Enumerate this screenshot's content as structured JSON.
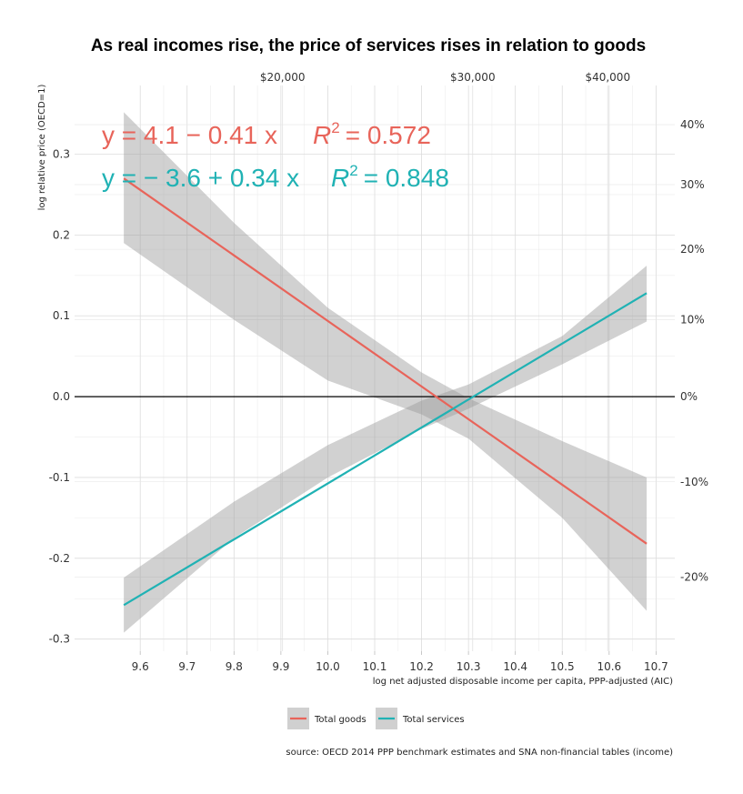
{
  "chart_data": {
    "type": "line",
    "title": "As real incomes rise, the price of services rises in relation to goods",
    "xlabel": "log net adjusted disposable income per capita, PPP-adjusted (AIC)",
    "ylabel": "log relative price (OECD=1)",
    "xlim": [
      9.46,
      10.74
    ],
    "ylim": [
      -0.315,
      0.385
    ],
    "x_ticks": [
      "9.6",
      "9.7",
      "9.8",
      "9.9",
      "10.0",
      "10.1",
      "10.2",
      "10.3",
      "10.4",
      "10.5",
      "10.6",
      "10.7"
    ],
    "x_tick_values": [
      9.6,
      9.7,
      9.8,
      9.9,
      10.0,
      10.1,
      10.2,
      10.3,
      10.4,
      10.5,
      10.6,
      10.7
    ],
    "y_ticks": [
      "0.3",
      "0.2",
      "0.1",
      "0.0",
      "-0.1",
      "-0.2",
      "-0.3"
    ],
    "y_tick_values": [
      0.3,
      0.2,
      0.1,
      0.0,
      -0.1,
      -0.2,
      -0.3
    ],
    "secondary_x_ticks": [
      "$20,000",
      "$30,000",
      "$40,000"
    ],
    "secondary_x_tick_values": [
      9.9035,
      10.309,
      10.597
    ],
    "secondary_y_ticks": [
      "40%",
      "30%",
      "20%",
      "10%",
      "0%",
      "-10%",
      "-20%"
    ],
    "secondary_y_tick_values": [
      0.3365,
      0.2624,
      0.1823,
      0.0953,
      0.0,
      -0.1054,
      -0.2231
    ],
    "x_range": [
      9.565,
      10.68
    ],
    "series": [
      {
        "name": "Total goods",
        "color": "#E8645A",
        "line": [
          [
            9.565,
            0.27
          ],
          [
            10.68,
            -0.182
          ]
        ],
        "band_upper": [
          [
            9.565,
            0.352
          ],
          [
            9.8,
            0.215
          ],
          [
            10.0,
            0.11
          ],
          [
            10.2,
            0.03
          ],
          [
            10.3,
            -0.002
          ],
          [
            10.5,
            -0.055
          ],
          [
            10.68,
            -0.1
          ]
        ],
        "band_lower": [
          [
            9.565,
            0.19
          ],
          [
            9.8,
            0.095
          ],
          [
            10.0,
            0.02
          ],
          [
            10.2,
            -0.022
          ],
          [
            10.3,
            -0.052
          ],
          [
            10.5,
            -0.15
          ],
          [
            10.68,
            -0.265
          ]
        ],
        "equation": "y = 4.1 − 0.41 x",
        "r2_label": "R",
        "r2_value": "= 0.572"
      },
      {
        "name": "Total services",
        "color": "#20B2B4",
        "line": [
          [
            9.565,
            -0.258
          ],
          [
            10.68,
            0.128
          ]
        ],
        "band_upper": [
          [
            9.565,
            -0.224
          ],
          [
            9.8,
            -0.13
          ],
          [
            10.0,
            -0.06
          ],
          [
            10.2,
            -0.005
          ],
          [
            10.3,
            0.015
          ],
          [
            10.5,
            0.075
          ],
          [
            10.68,
            0.162
          ]
        ],
        "band_lower": [
          [
            9.565,
            -0.292
          ],
          [
            9.8,
            -0.175
          ],
          [
            10.0,
            -0.1
          ],
          [
            10.2,
            -0.04
          ],
          [
            10.3,
            -0.015
          ],
          [
            10.5,
            0.04
          ],
          [
            10.68,
            0.093
          ]
        ],
        "equation": "y = − 3.6 + 0.34 x",
        "r2_label": "R",
        "r2_value": "= 0.848"
      }
    ],
    "legend": {
      "position": "bottom"
    },
    "source": "source: OECD 2014 PPP benchmark estimates and SNA non-financial tables (income)"
  }
}
